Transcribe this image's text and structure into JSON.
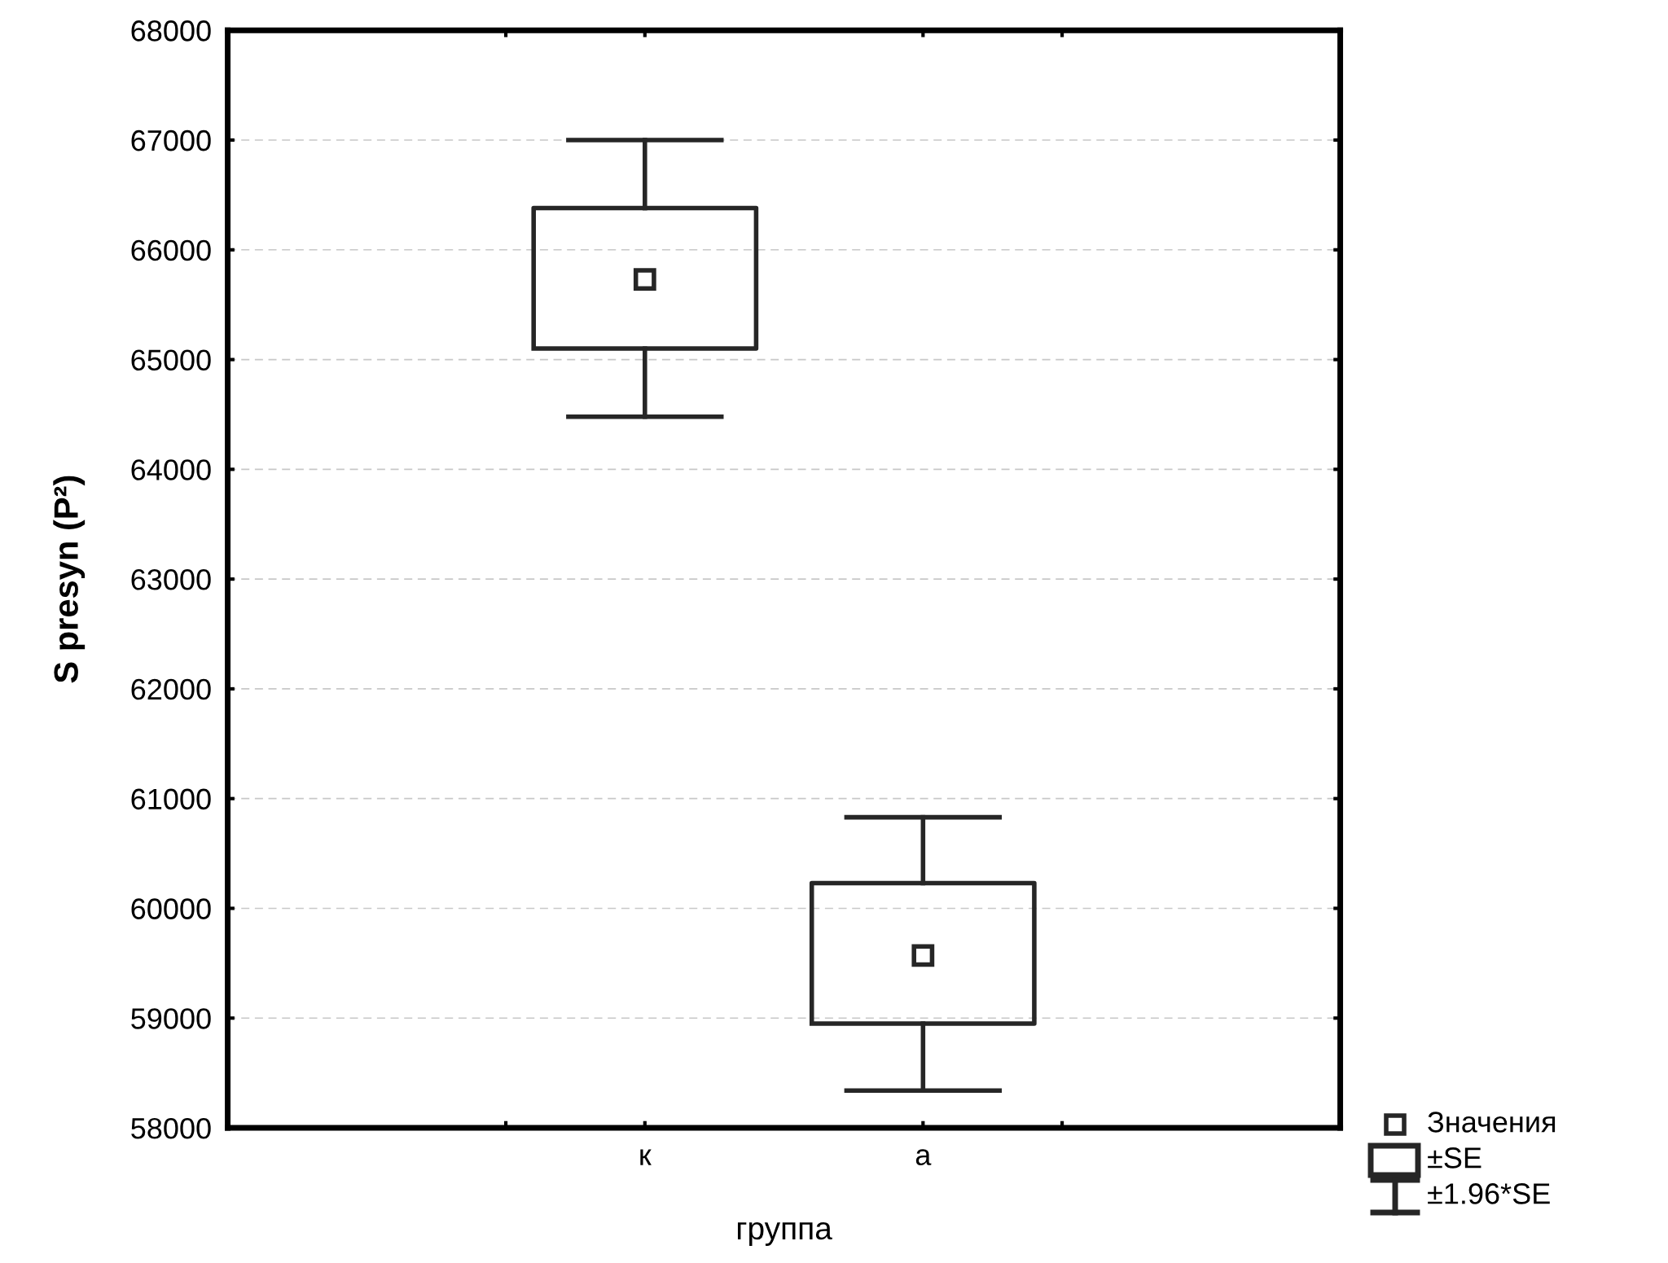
{
  "chart_data": {
    "type": "box",
    "xlabel": "группа",
    "ylabel": "S presyn (P²)",
    "categories": [
      "к",
      "а"
    ],
    "boxes": [
      {
        "low": 64480,
        "q1": 65100,
        "median": 65730,
        "q3": 66380,
        "high": 67000
      },
      {
        "low": 58340,
        "q1": 58950,
        "median": 59570,
        "q3": 60230,
        "high": 60830
      }
    ],
    "color": "#262626",
    "ylim": [
      58000,
      68000
    ],
    "yticks": [
      58000,
      59000,
      60000,
      61000,
      62000,
      63000,
      64000,
      65000,
      66000,
      67000,
      68000
    ],
    "grid": "y",
    "annotations": [
      "Значения",
      "±SE",
      "±1.96*SE"
    ]
  }
}
